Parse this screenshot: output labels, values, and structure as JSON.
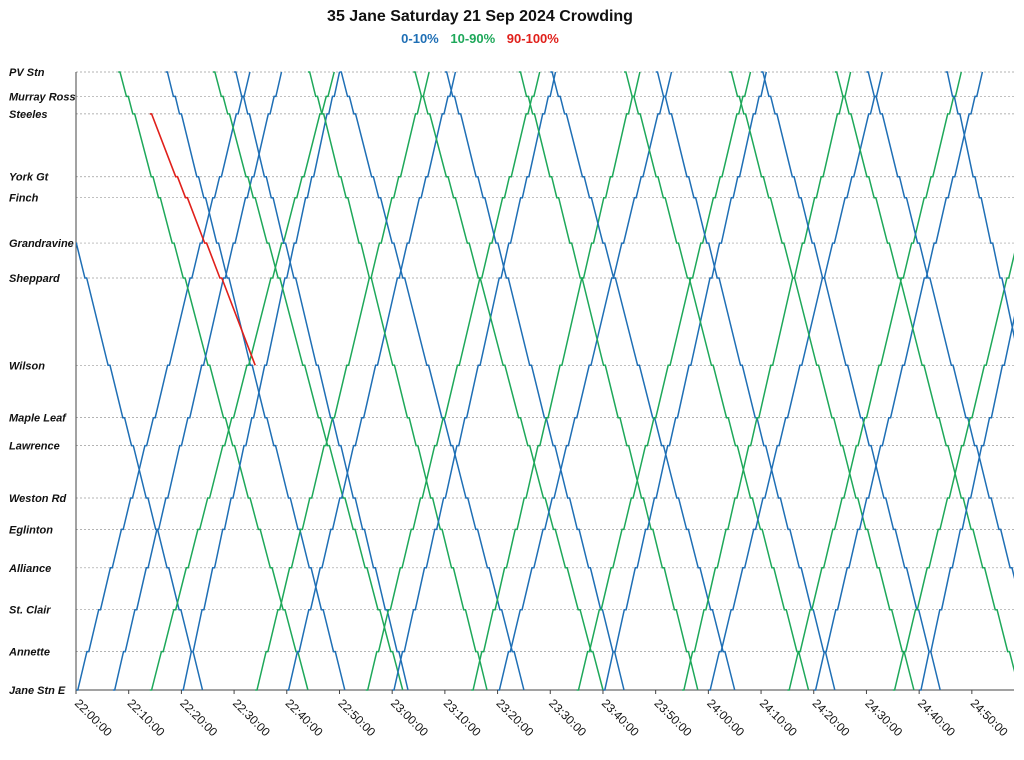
{
  "chart_data": {
    "type": "line",
    "title": "35 Jane Saturday 21 Sep 2024 Crowding",
    "legend": [
      {
        "name": "0-10%",
        "color": "#1f6fb5"
      },
      {
        "name": "10-90%",
        "color": "#1ea85a"
      },
      {
        "name": "90-100%",
        "color": "#e0201b"
      }
    ],
    "legend_position": "top-center",
    "grid": true,
    "y_axis": {
      "type": "category",
      "categories": [
        "PV Stn",
        "Murray Ross",
        "Steeles",
        "York Gt",
        "Finch",
        "Grandravine",
        "Sheppard",
        "Wilson",
        "Maple Leaf",
        "Lawrence",
        "Weston Rd",
        "Eglinton",
        "Alliance",
        "St. Clair",
        "Annette",
        "Jane Stn E"
      ],
      "distance": [
        0,
        0.7,
        1.2,
        3.0,
        3.6,
        4.9,
        5.9,
        8.4,
        9.9,
        10.7,
        12.2,
        13.1,
        14.2,
        15.4,
        16.6,
        17.7
      ]
    },
    "x_axis": {
      "ticks": [
        "22:00:00",
        "22:10:00",
        "22:20:00",
        "22:30:00",
        "22:40:00",
        "22:50:00",
        "23:00:00",
        "23:10:00",
        "23:20:00",
        "23:30:00",
        "23:40:00",
        "23:50:00",
        "24:00:00",
        "24:10:00",
        "24:20:00",
        "24:30:00",
        "24:40:00",
        "24:50:00"
      ],
      "range_minutes": [
        0,
        178
      ]
    },
    "series_note": "Each trip line goes from one terminal to the other; crowding band colors the line.",
    "trips": [
      {
        "band": "0-10%",
        "dir": "down",
        "start": -10,
        "dur": 34
      },
      {
        "band": "0-10%",
        "dir": "up",
        "start": 0,
        "dur": 33
      },
      {
        "band": "10-90%",
        "dir": "down",
        "start": 8,
        "dur": 36
      },
      {
        "band": "0-10%",
        "dir": "up",
        "start": 7,
        "dur": 32
      },
      {
        "band": "0-10%",
        "dir": "down",
        "start": 17,
        "dur": 34
      },
      {
        "band": "10-90%",
        "dir": "up",
        "start": 14,
        "dur": 35
      },
      {
        "band": "0-10%",
        "dir": "up",
        "start": 20,
        "dur": 30
      },
      {
        "band": "10-90%",
        "dir": "down",
        "start": 26,
        "dur": 36
      },
      {
        "band": "0-10%",
        "dir": "down",
        "start": 30,
        "dur": 33
      },
      {
        "band": "10-90%",
        "dir": "up",
        "start": 34,
        "dur": 33
      },
      {
        "band": "0-10%",
        "dir": "up",
        "start": 40,
        "dur": 32
      },
      {
        "band": "10-90%",
        "dir": "down",
        "start": 44,
        "dur": 34
      },
      {
        "band": "0-10%",
        "dir": "down",
        "start": 50,
        "dur": 35
      },
      {
        "band": "10-90%",
        "dir": "up",
        "start": 55,
        "dur": 33
      },
      {
        "band": "0-10%",
        "dir": "up",
        "start": 60,
        "dur": 31
      },
      {
        "band": "10-90%",
        "dir": "down",
        "start": 64,
        "dur": 36
      },
      {
        "band": "0-10%",
        "dir": "down",
        "start": 70,
        "dur": 34
      },
      {
        "band": "10-90%",
        "dir": "up",
        "start": 75,
        "dur": 32
      },
      {
        "band": "0-10%",
        "dir": "up",
        "start": 80,
        "dur": 33
      },
      {
        "band": "10-90%",
        "dir": "down",
        "start": 84,
        "dur": 34
      },
      {
        "band": "0-10%",
        "dir": "down",
        "start": 90,
        "dur": 35
      },
      {
        "band": "10-90%",
        "dir": "up",
        "start": 95,
        "dur": 33
      },
      {
        "band": "0-10%",
        "dir": "up",
        "start": 100,
        "dur": 31
      },
      {
        "band": "10-90%",
        "dir": "down",
        "start": 104,
        "dur": 35
      },
      {
        "band": "0-10%",
        "dir": "down",
        "start": 110,
        "dur": 34
      },
      {
        "band": "10-90%",
        "dir": "up",
        "start": 115,
        "dur": 32
      },
      {
        "band": "0-10%",
        "dir": "up",
        "start": 120,
        "dur": 33
      },
      {
        "band": "10-90%",
        "dir": "down",
        "start": 124,
        "dur": 35
      },
      {
        "band": "0-10%",
        "dir": "down",
        "start": 130,
        "dur": 34
      },
      {
        "band": "10-90%",
        "dir": "up",
        "start": 135,
        "dur": 33
      },
      {
        "band": "0-10%",
        "dir": "up",
        "start": 140,
        "dur": 32
      },
      {
        "band": "10-90%",
        "dir": "down",
        "start": 144,
        "dur": 35
      },
      {
        "band": "0-10%",
        "dir": "down",
        "start": 150,
        "dur": 34
      },
      {
        "band": "10-90%",
        "dir": "up",
        "start": 155,
        "dur": 33
      },
      {
        "band": "0-10%",
        "dir": "up",
        "start": 160,
        "dur": 30
      },
      {
        "band": "0-10%",
        "dir": "down",
        "start": 165,
        "dur": 30
      }
    ],
    "crowded_segment": {
      "band": "90-100%",
      "from_stop": "Steeles",
      "to_stop": "Wilson",
      "start": 14,
      "dur": 20
    }
  }
}
